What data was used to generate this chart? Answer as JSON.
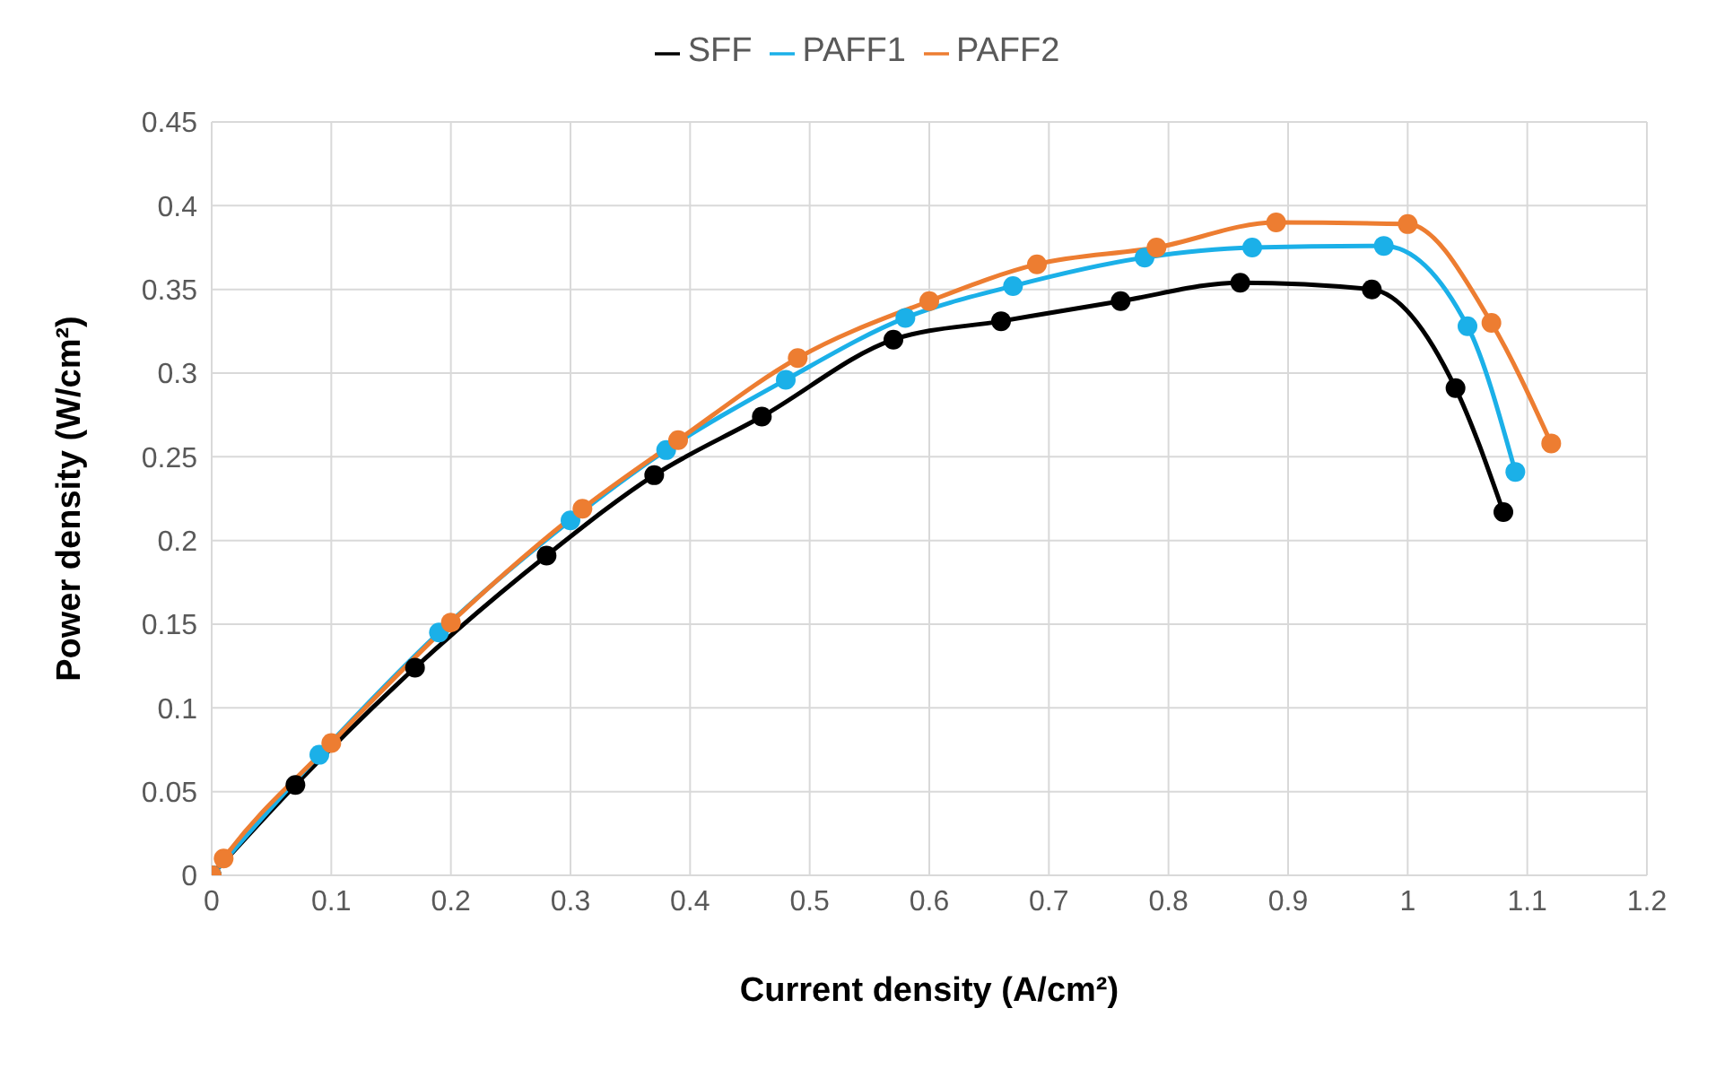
{
  "chart_data": {
    "type": "line",
    "xlabel": "Current density (A/cm²)",
    "ylabel": "Power density (W/cm²)",
    "series": [
      {
        "name": "SFF",
        "color": "#000000",
        "x": [
          0,
          0.01,
          0.07,
          0.17,
          0.28,
          0.37,
          0.46,
          0.57,
          0.66,
          0.76,
          0.86,
          0.97,
          1.04,
          1.08
        ],
        "values": [
          0,
          null,
          0.054,
          0.124,
          0.191,
          0.239,
          0.274,
          0.32,
          0.331,
          0.343,
          0.354,
          0.35,
          0.291,
          0.217
        ]
      },
      {
        "name": "PAFF1",
        "color": "#1bb0e8",
        "x": [
          0,
          0.01,
          0.09,
          0.19,
          0.3,
          0.38,
          0.48,
          0.58,
          0.67,
          0.78,
          0.87,
          0.98,
          1.05,
          1.09
        ],
        "values": [
          0,
          null,
          0.072,
          0.145,
          0.212,
          0.254,
          0.296,
          0.333,
          0.352,
          0.369,
          0.375,
          0.376,
          0.328,
          0.241
        ]
      },
      {
        "name": "PAFF2",
        "color": "#ed7d31",
        "x": [
          0,
          0.01,
          0.1,
          0.2,
          0.31,
          0.39,
          0.49,
          0.6,
          0.69,
          0.79,
          0.89,
          1.0,
          1.07,
          1.12
        ],
        "values": [
          0,
          0.01,
          0.079,
          0.151,
          0.219,
          0.26,
          0.309,
          0.343,
          0.365,
          0.375,
          0.39,
          0.389,
          0.33,
          0.258
        ]
      }
    ],
    "xlim": [
      0,
      1.2
    ],
    "xticks": [
      0,
      0.1,
      0.2,
      0.3,
      0.4,
      0.5,
      0.6,
      0.7,
      0.8,
      0.9,
      1,
      1.1,
      1.2
    ],
    "ylim": [
      0,
      0.45
    ],
    "yticks": [
      0,
      0.05,
      0.1,
      0.15,
      0.2,
      0.25,
      0.3,
      0.35,
      0.4,
      0.45
    ],
    "grid": true,
    "legend": "top",
    "marker": "circle",
    "line_style": "solid"
  }
}
